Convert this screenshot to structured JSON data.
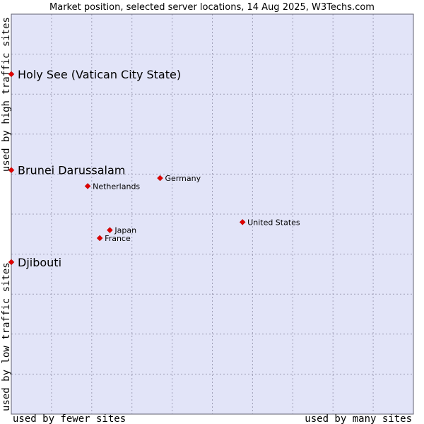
{
  "chart_data": {
    "type": "scatter",
    "title": "Market position, selected server locations, 14 Aug 2025, W3Techs.com",
    "xlabel_left": "used by fewer sites",
    "xlabel_right": "used by many sites",
    "ylabel_bottom": "used by low traffic sites",
    "ylabel_top": "used by high traffic sites",
    "xlim": [
      0,
      100
    ],
    "ylim": [
      0,
      100
    ],
    "grid": true,
    "colors": {
      "plot_bg": "#e2e4f8",
      "grid": "#a0a0b8",
      "marker": "#e00000",
      "border": "#606070"
    },
    "points": [
      {
        "label": "Holy See (Vatican City State)",
        "x": 0.0,
        "y": 85.0,
        "emphasis": true
      },
      {
        "label": "Brunei Darussalam",
        "x": 0.0,
        "y": 61.0,
        "emphasis": true
      },
      {
        "label": "Djibouti",
        "x": 0.0,
        "y": 38.0,
        "emphasis": true
      },
      {
        "label": "Germany",
        "x": 37.0,
        "y": 59.0,
        "emphasis": false
      },
      {
        "label": "Netherlands",
        "x": 19.0,
        "y": 57.0,
        "emphasis": false
      },
      {
        "label": "United States",
        "x": 57.5,
        "y": 48.0,
        "emphasis": false
      },
      {
        "label": "Japan",
        "x": 24.5,
        "y": 46.0,
        "emphasis": false
      },
      {
        "label": "France",
        "x": 22.0,
        "y": 44.0,
        "emphasis": false
      }
    ]
  }
}
